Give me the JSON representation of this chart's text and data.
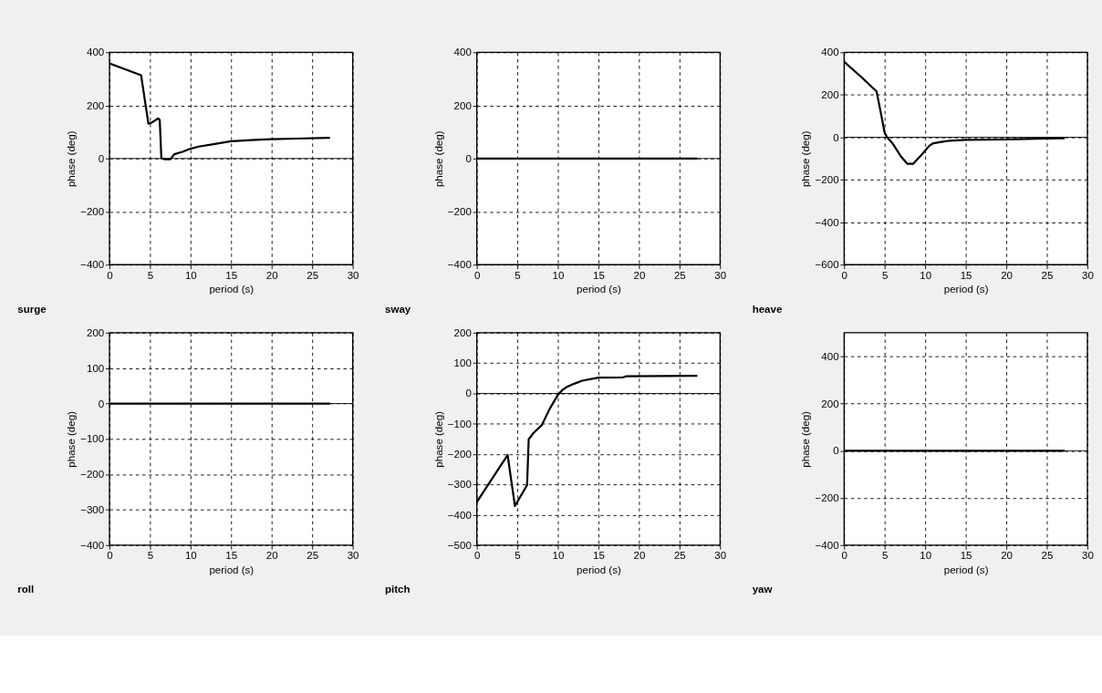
{
  "chart_data": [
    {
      "type": "line",
      "title": "surge",
      "xlabel": "period (s)",
      "ylabel": "phase (deg)",
      "xlim": [
        0,
        30
      ],
      "xticks": [
        0,
        5,
        10,
        15,
        20,
        25,
        30
      ],
      "ylim": [
        -400,
        400
      ],
      "yticks": [
        -400,
        -200,
        0,
        200,
        400
      ],
      "grid": true,
      "line_style": "solid",
      "ref_lines": [
        {
          "axis": "y",
          "value": 0,
          "color": "#000000"
        }
      ],
      "x": [
        0,
        3.9,
        4.8,
        5.2,
        6.0,
        6.2,
        6.4,
        6.8,
        7.5,
        8,
        9,
        10,
        11,
        13,
        15,
        18,
        20,
        23,
        27.2
      ],
      "series": [
        {
          "color": "#000000",
          "values": [
            358,
            314,
            131,
            135,
            151,
            145,
            1,
            -3,
            -3,
            16,
            25,
            37,
            45,
            55,
            65,
            70,
            73,
            75,
            78
          ]
        }
      ]
    },
    {
      "type": "line",
      "title": "sway",
      "xlabel": "period (s)",
      "ylabel": "phase (deg)",
      "xlim": [
        0,
        30
      ],
      "xticks": [
        0,
        5,
        10,
        15,
        20,
        25,
        30
      ],
      "ylim": [
        -400,
        400
      ],
      "yticks": [
        -400,
        -200,
        0,
        200,
        400
      ],
      "grid": true,
      "line_style": "solid",
      "ref_lines": [
        {
          "axis": "y",
          "value": 0,
          "color": "#000000"
        }
      ],
      "x": [
        0,
        27.2
      ],
      "series": [
        {
          "color": "#000000",
          "values": [
            0,
            0
          ]
        }
      ]
    },
    {
      "type": "line",
      "title": "heave",
      "xlabel": "period (s)",
      "ylabel": "phase (deg)",
      "xlim": [
        0,
        30
      ],
      "xticks": [
        0,
        5,
        10,
        15,
        20,
        25,
        30
      ],
      "ylim": [
        -600,
        400
      ],
      "yticks": [
        -600,
        -400,
        -200,
        0,
        200,
        400
      ],
      "grid": true,
      "line_style": "solid",
      "ref_lines": [
        {
          "axis": "y",
          "value": 0,
          "color": "#000000"
        }
      ],
      "x": [
        0,
        2,
        4,
        4.5,
        5,
        5.3,
        6,
        7,
        7.8,
        8.5,
        9.5,
        10.5,
        11,
        12,
        13,
        15,
        20,
        25,
        27.2
      ],
      "series": [
        {
          "color": "#000000",
          "values": [
            355,
            288,
            216,
            120,
            20,
            0,
            -30,
            -90,
            -125,
            -125,
            -85,
            -40,
            -28,
            -22,
            -16,
            -12,
            -10,
            -6,
            -5
          ]
        }
      ]
    },
    {
      "type": "line",
      "title": "roll",
      "xlabel": "period (s)",
      "ylabel": "phase (deg)",
      "xlim": [
        0,
        30
      ],
      "xticks": [
        0,
        5,
        10,
        15,
        20,
        25,
        30
      ],
      "ylim": [
        -400,
        200
      ],
      "yticks": [
        -400,
        -300,
        -200,
        -100,
        0,
        100,
        200
      ],
      "grid": true,
      "line_style": "solid",
      "ref_lines": [
        {
          "axis": "y",
          "value": 0,
          "color": "#000000"
        }
      ],
      "x": [
        0,
        27.2
      ],
      "series": [
        {
          "color": "#000000",
          "values": [
            0,
            0
          ]
        }
      ]
    },
    {
      "type": "line",
      "title": "pitch",
      "xlabel": "period (s)",
      "ylabel": "phase (deg)",
      "xlim": [
        0,
        30
      ],
      "xticks": [
        0,
        5,
        10,
        15,
        20,
        25,
        30
      ],
      "ylim": [
        -500,
        200
      ],
      "yticks": [
        -500,
        -400,
        -300,
        -200,
        -100,
        0,
        100,
        200
      ],
      "grid": true,
      "line_style": "solid",
      "ref_lines": [
        {
          "axis": "y",
          "value": 0,
          "color": "#000000"
        }
      ],
      "x": [
        0,
        3.8,
        4.7,
        6.2,
        6.4,
        7,
        8,
        9,
        10,
        10.5,
        11,
        12,
        13,
        15,
        18,
        18.5,
        27.2
      ],
      "series": [
        {
          "color": "#000000",
          "values": [
            -358,
            -203,
            -371,
            -302,
            -151,
            -130,
            -105,
            -50,
            -5,
            10,
            20,
            32,
            42,
            52,
            53,
            57,
            58
          ]
        }
      ]
    },
    {
      "type": "line",
      "title": "yaw",
      "xlabel": "period (s)",
      "ylabel": "phase (deg)",
      "xlim": [
        0,
        30
      ],
      "xticks": [
        0,
        5,
        10,
        15,
        20,
        25,
        30
      ],
      "ylim": [
        -400,
        500
      ],
      "yticks": [
        -400,
        -200,
        0,
        200,
        400
      ],
      "grid": true,
      "line_style": "solid",
      "ref_lines": [
        {
          "axis": "y",
          "value": 0,
          "color": "#000000"
        }
      ],
      "x": [
        0,
        27.2
      ],
      "series": [
        {
          "color": "#000000",
          "values": [
            0,
            0
          ]
        }
      ]
    }
  ]
}
